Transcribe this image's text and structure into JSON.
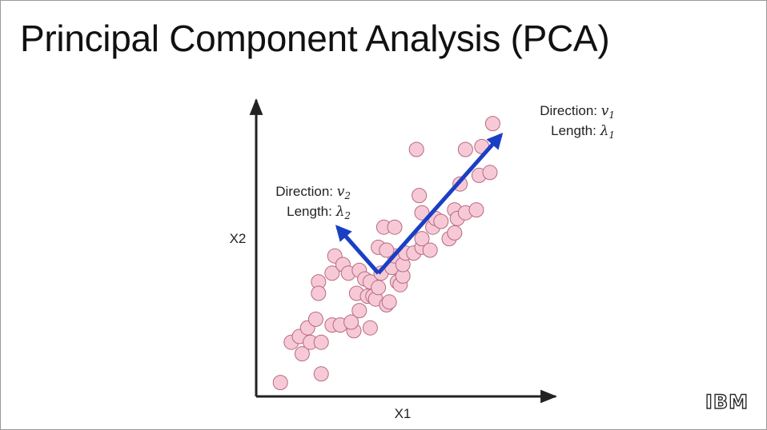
{
  "slide": {
    "title": "Principal Component Analysis (PCA)",
    "logo": "IBM"
  },
  "colors": {
    "point_fill": "#f7c9d6",
    "point_stroke": "#b56a80",
    "arrow": "#1a3fc4",
    "axis": "#222222"
  },
  "chart_data": {
    "type": "scatter",
    "xlabel": "X1",
    "ylabel": "X2",
    "xlim": [
      0,
      100
    ],
    "ylim": [
      0,
      100
    ],
    "axis_ticks": false,
    "grid": false,
    "points": [
      [
        8,
        4
      ],
      [
        12,
        18
      ],
      [
        15,
        20
      ],
      [
        18,
        23
      ],
      [
        16,
        14
      ],
      [
        19,
        18
      ],
      [
        23,
        18
      ],
      [
        23,
        7
      ],
      [
        21,
        26
      ],
      [
        27,
        24
      ],
      [
        30,
        24
      ],
      [
        35,
        22
      ],
      [
        34,
        25
      ],
      [
        41,
        23
      ],
      [
        37,
        29
      ],
      [
        22,
        39
      ],
      [
        22,
        35
      ],
      [
        27,
        42
      ],
      [
        28,
        48
      ],
      [
        31,
        45
      ],
      [
        33,
        42
      ],
      [
        36,
        35
      ],
      [
        37,
        43
      ],
      [
        39,
        40
      ],
      [
        40,
        34
      ],
      [
        42,
        34
      ],
      [
        41,
        39
      ],
      [
        43,
        33
      ],
      [
        44,
        37
      ],
      [
        45,
        42
      ],
      [
        47,
        31
      ],
      [
        48,
        32
      ],
      [
        49,
        44
      ],
      [
        50,
        48
      ],
      [
        51,
        39
      ],
      [
        52,
        38
      ],
      [
        53,
        41
      ],
      [
        53,
        45
      ],
      [
        54,
        49
      ],
      [
        44,
        51
      ],
      [
        47,
        50
      ],
      [
        46,
        58
      ],
      [
        50,
        58
      ],
      [
        57,
        49
      ],
      [
        60,
        51
      ],
      [
        60,
        54
      ],
      [
        63,
        50
      ],
      [
        64,
        58
      ],
      [
        65,
        61
      ],
      [
        67,
        60
      ],
      [
        70,
        54
      ],
      [
        72,
        56
      ],
      [
        72,
        64
      ],
      [
        73,
        61
      ],
      [
        76,
        63
      ],
      [
        74,
        73
      ],
      [
        80,
        64
      ],
      [
        81,
        76
      ],
      [
        59,
        69
      ],
      [
        60,
        63
      ],
      [
        58,
        85
      ],
      [
        76,
        85
      ],
      [
        82,
        86
      ],
      [
        85,
        77
      ],
      [
        86,
        94
      ]
    ],
    "vectors": [
      {
        "from": [
          44,
          42
        ],
        "to": [
          89,
          90
        ],
        "label_line1": "Direction: ",
        "label_symbol1": "v",
        "label_sub1": "1",
        "label_line2": "Length: ",
        "label_symbol2": "λ",
        "label_sub2": "1"
      },
      {
        "from": [
          44,
          42
        ],
        "to": [
          29,
          58
        ],
        "label_line1": "Direction: ",
        "label_symbol1": "v",
        "label_sub1": "2",
        "label_line2": "Length: ",
        "label_symbol2": "λ",
        "label_sub2": "2"
      }
    ]
  }
}
